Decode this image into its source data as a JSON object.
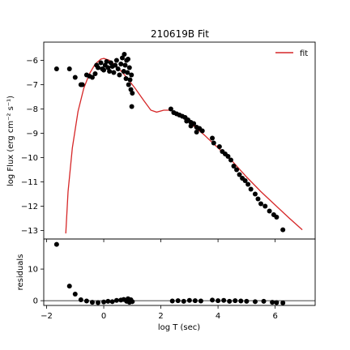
{
  "chart_data": [
    {
      "type": "scatter",
      "title": "210619B Fit",
      "xlabel": "",
      "ylabel": "log Flux (erg cm⁻² s⁻¹)",
      "xlim": [
        -2.1,
        7.4
      ],
      "ylim": [
        -13.35,
        -5.25
      ],
      "xticks": [
        -2,
        0,
        2,
        4,
        6
      ],
      "yticks": [
        -6,
        -7,
        -8,
        -9,
        -10,
        -11,
        -12,
        -13
      ],
      "legend": {
        "position": "top-right",
        "entries": [
          "fit"
        ]
      },
      "grid": false,
      "series": [
        {
          "name": "fit",
          "kind": "line",
          "color": "#d62728",
          "points": [
            [
              -1.33,
              -13.12
            ],
            [
              -1.25,
              -11.4
            ],
            [
              -1.1,
              -9.6
            ],
            [
              -0.9,
              -8.1
            ],
            [
              -0.7,
              -7.15
            ],
            [
              -0.5,
              -6.55
            ],
            [
              -0.3,
              -6.15
            ],
            [
              -0.1,
              -5.95
            ],
            [
              0.0,
              -5.92
            ],
            [
              0.2,
              -6.0
            ],
            [
              0.5,
              -6.3
            ],
            [
              0.8,
              -6.7
            ],
            [
              1.1,
              -7.15
            ],
            [
              1.4,
              -7.65
            ],
            [
              1.65,
              -8.05
            ],
            [
              1.85,
              -8.13
            ],
            [
              2.1,
              -8.05
            ],
            [
              2.35,
              -8.05
            ],
            [
              2.6,
              -8.22
            ],
            [
              3.0,
              -8.55
            ],
            [
              3.5,
              -9.05
            ],
            [
              4.0,
              -9.6
            ],
            [
              4.5,
              -10.15
            ],
            [
              5.0,
              -10.8
            ],
            [
              5.5,
              -11.4
            ],
            [
              6.0,
              -11.95
            ],
            [
              6.5,
              -12.5
            ],
            [
              6.95,
              -12.97
            ]
          ]
        },
        {
          "name": "",
          "kind": "points",
          "color": "#000000",
          "points": [
            [
              -1.65,
              -6.35
            ],
            [
              -1.2,
              -6.35
            ],
            [
              -1.0,
              -6.7
            ],
            [
              -0.8,
              -7.0
            ],
            [
              -0.75,
              -7.0
            ],
            [
              -0.6,
              -6.6
            ],
            [
              -0.5,
              -6.65
            ],
            [
              -0.4,
              -6.7
            ],
            [
              -0.3,
              -6.55
            ],
            [
              -0.25,
              -6.2
            ],
            [
              -0.2,
              -6.3
            ],
            [
              -0.1,
              -6.1
            ],
            [
              -0.05,
              -6.35
            ],
            [
              0.0,
              -6.4
            ],
            [
              0.05,
              -6.2
            ],
            [
              0.1,
              -6.05
            ],
            [
              0.15,
              -6.3
            ],
            [
              0.2,
              -6.45
            ],
            [
              0.25,
              -6.1
            ],
            [
              0.3,
              -6.25
            ],
            [
              0.35,
              -6.5
            ],
            [
              0.4,
              -6.2
            ],
            [
              0.45,
              -6.0
            ],
            [
              0.5,
              -6.35
            ],
            [
              0.55,
              -6.6
            ],
            [
              0.6,
              -6.15
            ],
            [
              0.65,
              -5.9
            ],
            [
              0.7,
              -6.45
            ],
            [
              0.72,
              -5.75
            ],
            [
              0.75,
              -6.2
            ],
            [
              0.78,
              -6.75
            ],
            [
              0.8,
              -6.0
            ],
            [
              0.83,
              -6.5
            ],
            [
              0.85,
              -5.95
            ],
            [
              0.87,
              -7.0
            ],
            [
              0.9,
              -6.3
            ],
            [
              0.92,
              -6.8
            ],
            [
              0.95,
              -7.2
            ],
            [
              0.97,
              -6.6
            ],
            [
              1.0,
              -7.35
            ],
            [
              0.98,
              -7.9
            ],
            [
              2.35,
              -8.0
            ],
            [
              2.45,
              -8.15
            ],
            [
              2.55,
              -8.2
            ],
            [
              2.65,
              -8.25
            ],
            [
              2.75,
              -8.3
            ],
            [
              2.85,
              -8.35
            ],
            [
              2.95,
              -8.45
            ],
            [
              3.05,
              -8.55
            ],
            [
              3.15,
              -8.6
            ],
            [
              3.25,
              -8.75
            ],
            [
              3.35,
              -8.8
            ],
            [
              3.45,
              -8.9
            ],
            [
              3.25,
              -8.95
            ],
            [
              3.05,
              -8.7
            ],
            [
              2.9,
              -8.5
            ],
            [
              3.8,
              -9.2
            ],
            [
              3.85,
              -9.4
            ],
            [
              4.05,
              -9.55
            ],
            [
              4.15,
              -9.75
            ],
            [
              4.25,
              -9.85
            ],
            [
              4.35,
              -9.95
            ],
            [
              4.45,
              -10.1
            ],
            [
              4.55,
              -10.35
            ],
            [
              4.65,
              -10.5
            ],
            [
              4.75,
              -10.7
            ],
            [
              4.85,
              -10.85
            ],
            [
              4.95,
              -10.95
            ],
            [
              5.05,
              -11.1
            ],
            [
              5.15,
              -11.3
            ],
            [
              5.3,
              -11.5
            ],
            [
              5.4,
              -11.7
            ],
            [
              5.5,
              -11.9
            ],
            [
              5.65,
              -12.0
            ],
            [
              5.8,
              -12.2
            ],
            [
              5.95,
              -12.35
            ],
            [
              6.05,
              -12.45
            ],
            [
              6.27,
              -12.97
            ]
          ]
        }
      ]
    },
    {
      "type": "scatter",
      "title": "",
      "xlabel": "log T (sec)",
      "ylabel": "residuals",
      "xlim": [
        -2.1,
        7.4
      ],
      "ylim": [
        -1.5,
        19.5
      ],
      "xticks": [
        -2,
        0,
        2,
        4,
        6
      ],
      "yticks": [
        0,
        10
      ],
      "reference_line": 0,
      "grid": false,
      "series": [
        {
          "name": "",
          "kind": "points",
          "color": "#000000",
          "points": [
            [
              -1.65,
              17.8
            ],
            [
              -1.2,
              4.6
            ],
            [
              -1.0,
              2.1
            ],
            [
              -0.8,
              0.3
            ],
            [
              -0.6,
              -0.1
            ],
            [
              -0.4,
              -0.5
            ],
            [
              -0.2,
              -0.6
            ],
            [
              0.0,
              -0.4
            ],
            [
              0.15,
              -0.2
            ],
            [
              0.3,
              -0.3
            ],
            [
              0.45,
              0.1
            ],
            [
              0.6,
              0.2
            ],
            [
              0.7,
              0.4
            ],
            [
              0.8,
              -0.2
            ],
            [
              0.85,
              0.6
            ],
            [
              0.9,
              -0.5
            ],
            [
              0.95,
              0.3
            ],
            [
              1.0,
              -0.3
            ],
            [
              2.4,
              -0.1
            ],
            [
              2.6,
              0.0
            ],
            [
              2.8,
              -0.2
            ],
            [
              3.0,
              0.1
            ],
            [
              3.2,
              0.0
            ],
            [
              3.4,
              -0.1
            ],
            [
              3.8,
              0.2
            ],
            [
              4.0,
              0.0
            ],
            [
              4.2,
              0.1
            ],
            [
              4.4,
              -0.2
            ],
            [
              4.6,
              0.0
            ],
            [
              4.8,
              -0.1
            ],
            [
              5.0,
              -0.2
            ],
            [
              5.3,
              -0.3
            ],
            [
              5.6,
              -0.2
            ],
            [
              5.9,
              -0.5
            ],
            [
              6.05,
              -0.6
            ],
            [
              6.27,
              -0.7
            ]
          ]
        }
      ]
    }
  ]
}
